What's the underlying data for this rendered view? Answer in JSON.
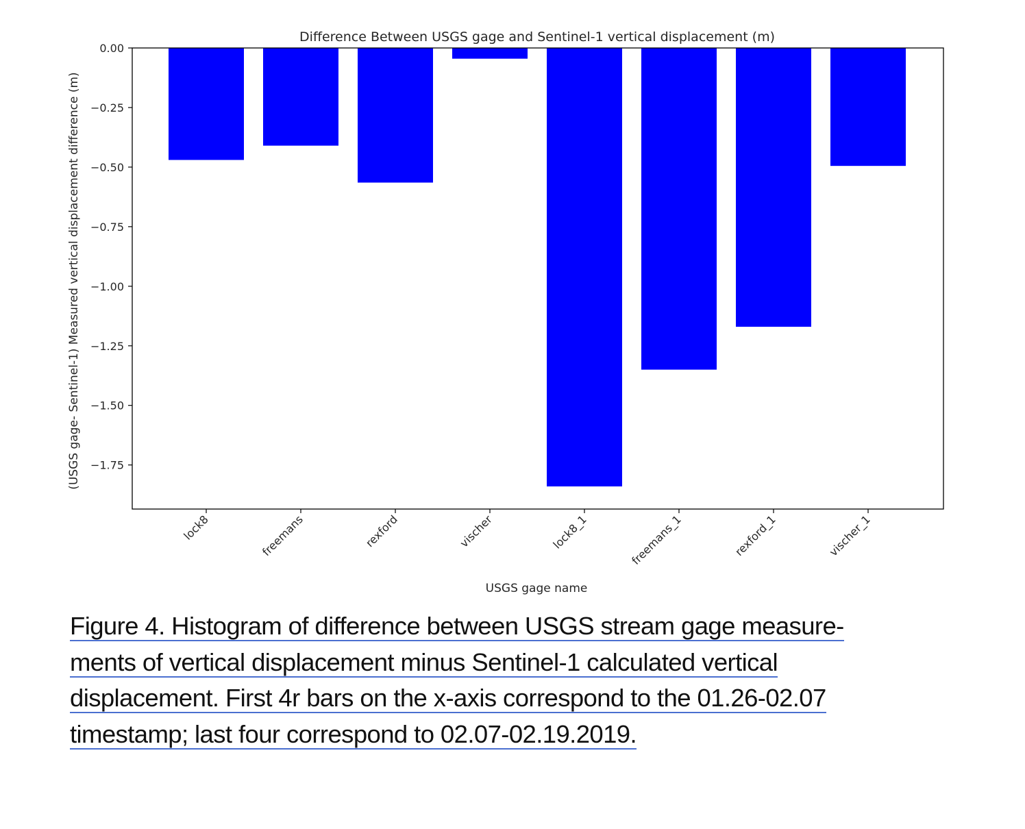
{
  "chart_data": {
    "type": "bar",
    "title": "Difference Between USGS gage and Sentinel-1 vertical displacement (m)",
    "xlabel": "USGS gage name",
    "ylabel": "(USGS gage- Sentinel-1) Measured vertical displacement difference (m)",
    "categories": [
      "lock8",
      "freemans",
      "rexford",
      "vischer",
      "lock8_1",
      "freemans_1",
      "rexford_1",
      "vischer_1"
    ],
    "values": [
      -0.47,
      -0.41,
      -0.565,
      -0.045,
      -1.84,
      -1.35,
      -1.17,
      -0.495
    ],
    "ylim": [
      -1.935,
      0.0
    ],
    "yticks": [
      0.0,
      -0.25,
      -0.5,
      -0.75,
      -1.0,
      -1.25,
      -1.5,
      -1.75
    ],
    "ytick_labels": [
      "0.00",
      "−0.25",
      "−0.50",
      "−0.75",
      "−1.00",
      "−1.25",
      "−1.50",
      "−1.75"
    ],
    "bar_color": "#0000ff",
    "grid": false
  },
  "caption": {
    "lines": [
      "Figure 4. Histogram of difference between USGS stream gage measure-",
      "ments of vertical displacement minus Sentinel-1 calculated vertical",
      "displacement. First 4r bars on the x-axis correspond to the 01.26-02.07",
      "timestamp; last four correspond to 02.07-02.19.2019."
    ]
  }
}
